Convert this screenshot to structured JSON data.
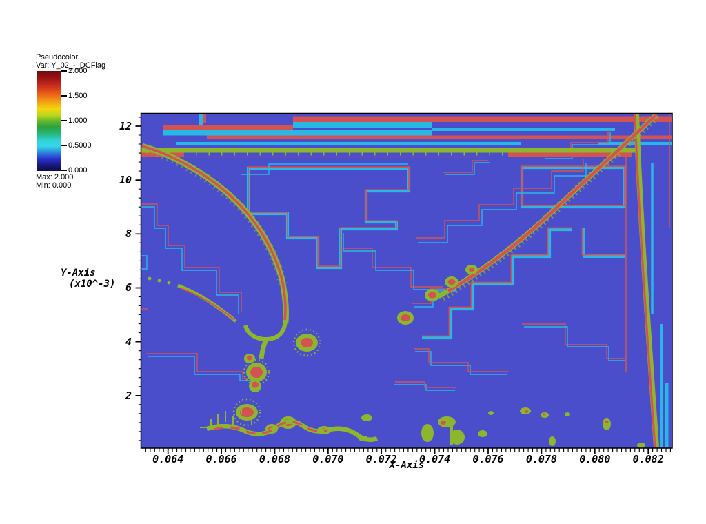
{
  "legend": {
    "title": "Pseudocolor",
    "var_label": "Var: Y_02_-_DCFlag",
    "tick_labels": [
      "2.000",
      "1.500",
      "1.000",
      "0.5000",
      "0.000"
    ],
    "max_label": "Max: 2.000",
    "min_label": "Min: 0.000"
  },
  "chart_data": {
    "type": "heatmap",
    "description": "AMR pseudocolor flag field rendered over a 2D domain; flat low-value blue field with red/green shock fronts, red-cored blobs and red/cyan refinement-patch stair-step outlines",
    "xlabel": "X-Axis",
    "ylabel_line1": "Y-Axis",
    "ylabel_line2": "(x10^-3)",
    "x_tick_labels": [
      "0.064",
      "0.066",
      "0.068",
      "0.070",
      "0.072",
      "0.074",
      "0.076",
      "0.078",
      "0.080",
      "0.082"
    ],
    "x_tick_values": [
      0.064,
      0.066,
      0.068,
      0.07,
      0.072,
      0.074,
      0.076,
      0.078,
      0.08,
      0.082
    ],
    "y_tick_labels": [
      "12",
      "10",
      "8",
      "6",
      "4",
      "2"
    ],
    "y_tick_values": [
      12,
      10,
      8,
      6,
      4,
      2
    ],
    "x_range": [
      0.063,
      0.0829
    ],
    "y_range": [
      0.05,
      12.46
    ],
    "x_major_step": 0.002,
    "y_major_step": 2,
    "y_scale_note": "x10^-3",
    "colorbar": {
      "min": 0.0,
      "max": 2.0,
      "ticks": [
        2.0,
        1.5,
        1.0,
        0.5,
        0.0
      ]
    },
    "colors": {
      "low": "#4a4ecb",
      "red": "#d25352",
      "green": "#8eb52e",
      "cyan": "#29b7e6",
      "axis": "#000000"
    },
    "features": [
      {
        "name": "horizontal-band-fronts",
        "colors": "red/cyan",
        "y_data_span": [
          11.5,
          12.45
        ],
        "x_data_span": [
          0.0638,
          0.0829
        ]
      },
      {
        "name": "horizontal-green-front",
        "color": "green over red",
        "y_data": 11.05,
        "x_data_span": [
          0.063,
          0.0816
        ]
      },
      {
        "name": "bow-shock-curve",
        "colors": "red core, green fringe",
        "from_xy": [
          0.063,
          11.25
        ],
        "to_xy": [
          0.0684,
          4.65
        ]
      },
      {
        "name": "oblique-shock",
        "colors": "red core, green speckle",
        "from_xy": [
          0.0823,
          12.42
        ],
        "to_xy": [
          0.0742,
          5.6
        ]
      },
      {
        "name": "near-vertical-front",
        "colors": "green with red core",
        "from_xy": [
          0.0816,
          12.45
        ],
        "to_xy": [
          0.0823,
          0.05
        ]
      },
      {
        "name": "blob",
        "xy": [
          0.0692,
          3.96
        ]
      },
      {
        "name": "blob",
        "xy": [
          0.0673,
          2.86
        ]
      },
      {
        "name": "blob",
        "xy": [
          0.0729,
          4.88
        ]
      },
      {
        "name": "blob",
        "xy": [
          0.0739,
          5.73
        ]
      },
      {
        "name": "blob",
        "xy": [
          0.0746,
          6.22
        ]
      },
      {
        "name": "blob",
        "xy": [
          0.067,
          1.38
        ]
      },
      {
        "name": "blob",
        "xy": [
          0.0685,
          0.97
        ]
      },
      {
        "name": "blob",
        "xy": [
          0.0698,
          0.72
        ]
      },
      {
        "name": "refinement-patch-outlines",
        "colors": "thin red and cyan stair-step polylines across domain"
      }
    ]
  }
}
